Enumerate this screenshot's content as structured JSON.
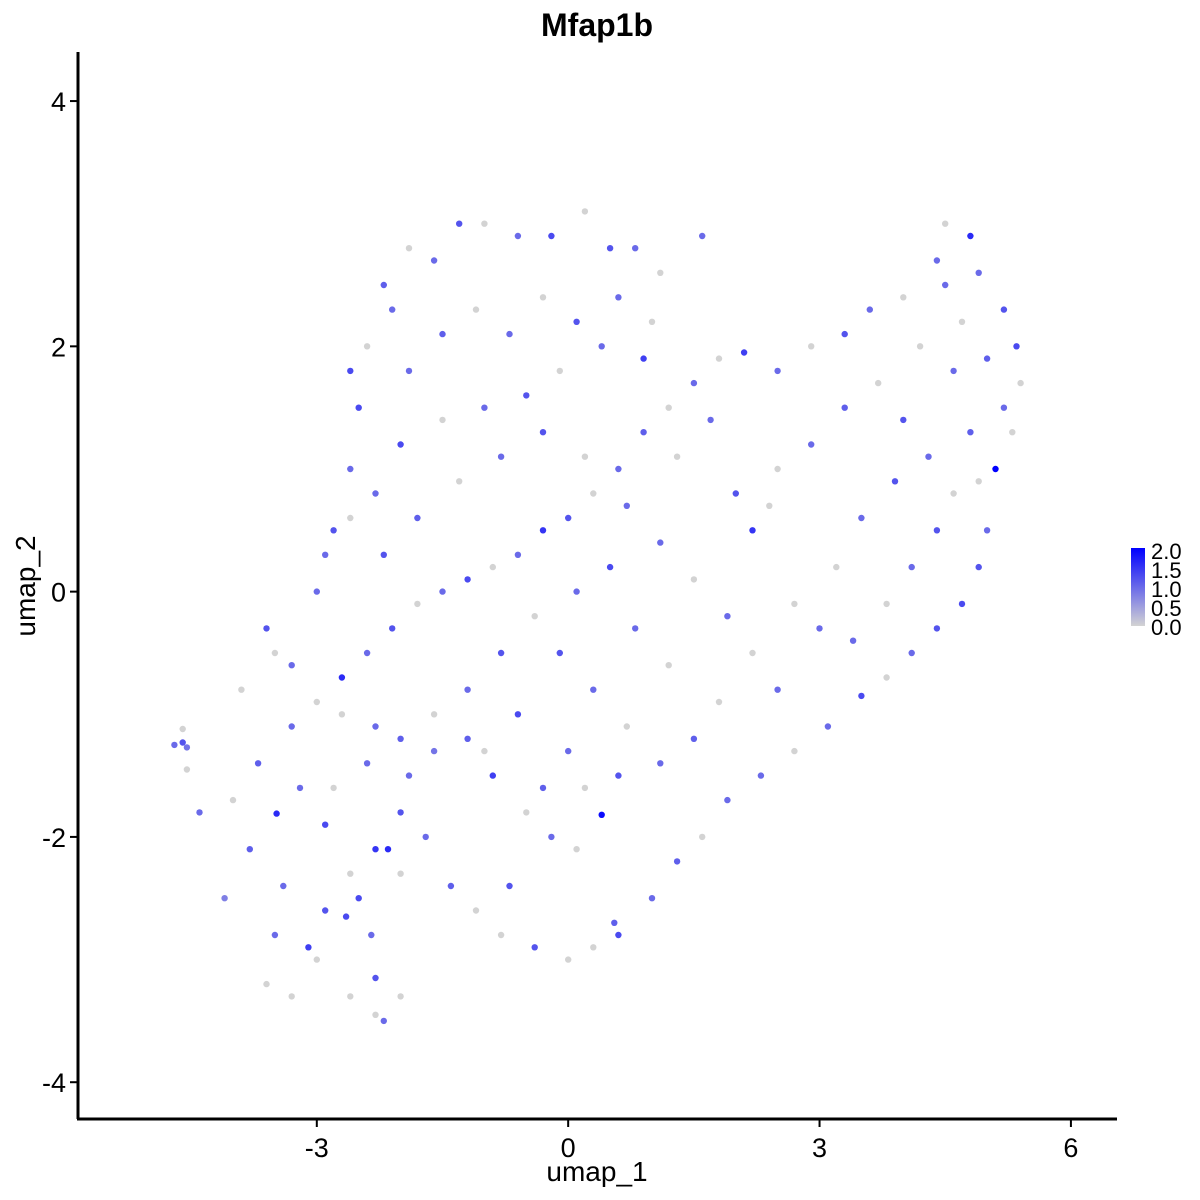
{
  "chart_data": {
    "type": "scatter",
    "title": "Mfap1b",
    "xlabel": "umap_1",
    "ylabel": "umap_2",
    "xlim": [
      -5.85,
      6.55
    ],
    "ylim": [
      -4.3,
      4.4
    ],
    "x_ticks": [
      -3,
      0,
      3,
      6
    ],
    "y_ticks": [
      -4,
      -2,
      0,
      2,
      4
    ],
    "x_tick_labels": [
      "-3",
      "0",
      "3",
      "6"
    ],
    "y_tick_labels": [
      "-4",
      "-2",
      "0",
      "2",
      "4"
    ],
    "grid": false,
    "legend": {
      "position": "right",
      "type": "colorbar",
      "min": 0.0,
      "max": 2.0,
      "labels": [
        "2.0",
        "1.5",
        "1.0",
        "0.5",
        "0.0"
      ],
      "low_color": "#d3d3d3",
      "high_color": "#0000ff"
    },
    "colors": {
      "low": "#d3d3d3",
      "high": "#0000ff"
    },
    "points": [
      [
        -4.7,
        -1.25,
        1.0
      ],
      [
        -4.6,
        -1.23,
        1.2
      ],
      [
        -4.55,
        -1.27,
        0.9
      ],
      [
        -4.6,
        -1.12,
        0.0
      ],
      [
        -4.55,
        -1.45,
        0.0
      ],
      [
        -4.4,
        -1.8,
        1.0
      ],
      [
        -3.48,
        -1.81,
        1.6
      ],
      [
        -4.1,
        -2.5,
        0.8
      ],
      [
        -3.6,
        -3.2,
        0.0
      ],
      [
        -3.3,
        -3.3,
        0.0
      ],
      [
        -3.1,
        -2.9,
        1.4
      ],
      [
        -2.6,
        -3.3,
        0.0
      ],
      [
        -2.3,
        -3.45,
        0.0
      ],
      [
        -2.2,
        -3.5,
        1.0
      ],
      [
        -2.0,
        -3.3,
        0.0
      ],
      [
        -2.65,
        -2.65,
        1.3
      ],
      [
        -2.35,
        -2.8,
        1.0
      ],
      [
        -2.3,
        -3.15,
        1.2
      ],
      [
        -2.3,
        -2.1,
        1.5
      ],
      [
        -2.15,
        -2.1,
        1.6
      ],
      [
        -2.0,
        -1.8,
        1.2
      ],
      [
        -1.9,
        -1.5,
        1.0
      ],
      [
        -1.6,
        -1.3,
        0.9
      ],
      [
        -1.2,
        -1.2,
        1.1
      ],
      [
        -0.9,
        -1.5,
        1.4
      ],
      [
        -0.5,
        -1.8,
        0.0
      ],
      [
        -0.2,
        -2.0,
        1.0
      ],
      [
        0.1,
        -2.1,
        0.0
      ],
      [
        0.4,
        -1.82,
        1.9
      ],
      [
        0.55,
        -2.7,
        1.1
      ],
      [
        0.6,
        -2.8,
        1.3
      ],
      [
        0.3,
        -2.9,
        0.0
      ],
      [
        0.0,
        -3.0,
        0.0
      ],
      [
        -0.4,
        -2.9,
        1.2
      ],
      [
        -0.8,
        -2.8,
        0.0
      ],
      [
        1.0,
        -2.5,
        1.0
      ],
      [
        1.3,
        -2.2,
        1.1
      ],
      [
        1.6,
        -2.0,
        0.0
      ],
      [
        1.9,
        -1.7,
        1.0
      ],
      [
        2.3,
        -1.5,
        1.0
      ],
      [
        2.7,
        -1.3,
        0.0
      ],
      [
        3.1,
        -1.1,
        1.0
      ],
      [
        3.5,
        -0.85,
        1.3
      ],
      [
        3.8,
        -0.7,
        0.0
      ],
      [
        4.1,
        -0.5,
        1.0
      ],
      [
        4.4,
        -0.3,
        1.2
      ],
      [
        4.7,
        -0.1,
        1.3
      ],
      [
        4.9,
        0.2,
        1.2
      ],
      [
        5.0,
        0.5,
        1.0
      ],
      [
        5.1,
        1.0,
        2.0
      ],
      [
        5.3,
        1.3,
        0.0
      ],
      [
        5.4,
        1.7,
        0.0
      ],
      [
        5.35,
        2.0,
        1.3
      ],
      [
        5.2,
        2.3,
        1.2
      ],
      [
        4.9,
        2.6,
        1.0
      ],
      [
        4.8,
        2.9,
        1.6
      ],
      [
        4.5,
        3.0,
        0.0
      ],
      [
        4.4,
        2.7,
        1.0
      ],
      [
        4.0,
        2.4,
        0.0
      ],
      [
        3.6,
        2.3,
        1.0
      ],
      [
        3.3,
        2.1,
        1.2
      ],
      [
        2.9,
        2.0,
        0.0
      ],
      [
        2.5,
        1.8,
        1.0
      ],
      [
        2.1,
        1.95,
        1.4
      ],
      [
        1.8,
        1.9,
        0.0
      ],
      [
        1.5,
        1.7,
        1.0
      ],
      [
        1.2,
        1.5,
        0.0
      ],
      [
        0.9,
        1.3,
        1.1
      ],
      [
        0.6,
        1.0,
        1.0
      ],
      [
        0.3,
        0.8,
        0.0
      ],
      [
        0.0,
        0.6,
        1.2
      ],
      [
        -0.3,
        0.5,
        1.5
      ],
      [
        -0.6,
        0.3,
        1.0
      ],
      [
        -0.9,
        0.2,
        0.0
      ],
      [
        -1.2,
        0.1,
        1.3
      ],
      [
        -1.5,
        0.0,
        1.0
      ],
      [
        -1.8,
        -0.1,
        0.0
      ],
      [
        -2.1,
        -0.3,
        1.2
      ],
      [
        -2.4,
        -0.5,
        1.0
      ],
      [
        -2.7,
        -0.7,
        1.6
      ],
      [
        -3.0,
        -0.9,
        0.0
      ],
      [
        -3.3,
        -0.6,
        1.0
      ],
      [
        -3.6,
        -0.3,
        1.2
      ],
      [
        -3.9,
        -0.8,
        0.0
      ],
      [
        -3.7,
        -1.4,
        1.1
      ],
      [
        -3.2,
        -1.6,
        1.0
      ],
      [
        -2.9,
        -1.9,
        1.3
      ],
      [
        -2.6,
        -2.3,
        0.0
      ],
      [
        -2.9,
        -2.6,
        1.2
      ],
      [
        -3.4,
        -2.4,
        1.0
      ],
      [
        -3.8,
        -2.1,
        1.1
      ],
      [
        -4.0,
        -1.7,
        0.0
      ],
      [
        -3.5,
        -2.8,
        1.0
      ],
      [
        -3.0,
        -3.0,
        0.0
      ],
      [
        -2.5,
        -2.5,
        1.3
      ],
      [
        -2.0,
        -2.3,
        0.0
      ],
      [
        -1.7,
        -2.0,
        1.0
      ],
      [
        -1.4,
        -2.4,
        1.1
      ],
      [
        -1.1,
        -2.6,
        0.0
      ],
      [
        -0.7,
        -2.4,
        1.2
      ],
      [
        -3.0,
        0.0,
        1.0
      ],
      [
        -2.8,
        0.5,
        1.2
      ],
      [
        -2.6,
        1.0,
        1.0
      ],
      [
        -2.5,
        1.5,
        1.3
      ],
      [
        -2.4,
        2.0,
        0.0
      ],
      [
        -2.2,
        2.5,
        1.1
      ],
      [
        -1.9,
        2.8,
        0.0
      ],
      [
        -1.6,
        2.7,
        1.0
      ],
      [
        -1.3,
        3.0,
        1.2
      ],
      [
        -1.0,
        3.0,
        0.0
      ],
      [
        -0.6,
        2.9,
        1.0
      ],
      [
        -0.2,
        2.9,
        1.3
      ],
      [
        0.2,
        3.1,
        0.0
      ],
      [
        0.5,
        2.8,
        1.2
      ],
      [
        0.8,
        2.8,
        1.0
      ],
      [
        1.1,
        2.6,
        0.0
      ],
      [
        1.6,
        2.9,
        1.0
      ],
      [
        0.9,
        1.9,
        1.4
      ],
      [
        0.4,
        2.0,
        1.0
      ],
      [
        -0.1,
        1.8,
        0.0
      ],
      [
        -0.5,
        1.6,
        1.2
      ],
      [
        -1.0,
        1.5,
        1.0
      ],
      [
        -1.5,
        1.4,
        0.0
      ],
      [
        -2.0,
        1.2,
        1.3
      ],
      [
        -2.3,
        0.8,
        1.0
      ],
      [
        -1.8,
        0.6,
        1.1
      ],
      [
        -1.3,
        0.9,
        0.0
      ],
      [
        -0.8,
        1.1,
        1.0
      ],
      [
        -0.3,
        1.3,
        1.2
      ],
      [
        0.2,
        1.1,
        0.0
      ],
      [
        0.7,
        0.7,
        1.0
      ],
      [
        1.1,
        0.4,
        1.0
      ],
      [
        1.5,
        0.1,
        0.0
      ],
      [
        1.9,
        -0.2,
        1.0
      ],
      [
        2.2,
        -0.5,
        0.0
      ],
      [
        2.5,
        -0.8,
        1.0
      ],
      [
        2.0,
        0.8,
        1.2
      ],
      [
        2.2,
        0.5,
        1.5
      ],
      [
        2.5,
        1.0,
        0.0
      ],
      [
        2.9,
        1.2,
        1.0
      ],
      [
        3.3,
        1.5,
        1.1
      ],
      [
        3.7,
        1.7,
        0.0
      ],
      [
        4.0,
        1.4,
        1.2
      ],
      [
        4.3,
        1.1,
        1.0
      ],
      [
        4.6,
        0.8,
        0.0
      ],
      [
        4.8,
        1.3,
        1.1
      ],
      [
        4.6,
        1.8,
        1.0
      ],
      [
        4.2,
        2.0,
        0.0
      ],
      [
        3.9,
        0.9,
        1.2
      ],
      [
        3.5,
        0.6,
        1.0
      ],
      [
        3.2,
        0.2,
        0.0
      ],
      [
        3.0,
        -0.3,
        1.0
      ],
      [
        2.7,
        -0.1,
        0.0
      ],
      [
        1.7,
        1.4,
        1.0
      ],
      [
        1.3,
        1.1,
        0.0
      ],
      [
        0.5,
        0.2,
        1.3
      ],
      [
        0.1,
        0.0,
        1.0
      ],
      [
        -0.4,
        -0.2,
        0.0
      ],
      [
        -0.8,
        -0.5,
        1.2
      ],
      [
        -1.2,
        -0.8,
        1.0
      ],
      [
        -1.6,
        -1.0,
        0.0
      ],
      [
        -2.0,
        -1.2,
        1.1
      ],
      [
        -2.4,
        -1.4,
        1.0
      ],
      [
        -2.8,
        -1.6,
        0.0
      ],
      [
        -0.1,
        -0.5,
        1.2
      ],
      [
        0.3,
        -0.8,
        1.0
      ],
      [
        0.7,
        -1.1,
        0.0
      ],
      [
        1.1,
        -1.4,
        1.0
      ],
      [
        1.5,
        -1.2,
        1.1
      ],
      [
        1.8,
        -0.9,
        0.0
      ],
      [
        0.8,
        -0.3,
        1.0
      ],
      [
        1.2,
        -0.6,
        0.0
      ],
      [
        -0.6,
        -1.0,
        1.3
      ],
      [
        -1.0,
        -1.3,
        0.0
      ],
      [
        0.0,
        -1.3,
        1.0
      ],
      [
        -0.3,
        -1.6,
        1.1
      ],
      [
        0.2,
        -1.6,
        0.0
      ],
      [
        0.6,
        -1.5,
        1.2
      ],
      [
        -2.3,
        -1.1,
        1.0
      ],
      [
        -2.7,
        -1.0,
        0.0
      ],
      [
        -3.3,
        -1.1,
        1.0
      ],
      [
        -3.5,
        -0.5,
        0.0
      ],
      [
        -2.9,
        0.3,
        1.0
      ],
      [
        -2.6,
        0.6,
        0.0
      ],
      [
        -2.2,
        0.3,
        1.2
      ],
      [
        -1.9,
        1.8,
        1.0
      ],
      [
        -1.5,
        2.1,
        1.1
      ],
      [
        -1.1,
        2.3,
        0.0
      ],
      [
        -0.7,
        2.1,
        1.0
      ],
      [
        -0.3,
        2.4,
        0.0
      ],
      [
        0.1,
        2.2,
        1.2
      ],
      [
        0.6,
        2.4,
        1.0
      ],
      [
        1.0,
        2.2,
        0.0
      ],
      [
        -2.1,
        2.3,
        1.0
      ],
      [
        -2.6,
        1.8,
        1.3
      ],
      [
        4.5,
        2.5,
        1.0
      ],
      [
        4.7,
        2.2,
        0.0
      ],
      [
        5.0,
        1.9,
        1.1
      ],
      [
        5.2,
        1.5,
        1.0
      ],
      [
        4.9,
        0.9,
        0.0
      ],
      [
        4.4,
        0.5,
        1.2
      ],
      [
        4.1,
        0.2,
        1.0
      ],
      [
        3.8,
        -0.1,
        0.0
      ],
      [
        3.4,
        -0.4,
        1.0
      ],
      [
        2.4,
        0.7,
        0.0
      ]
    ]
  }
}
